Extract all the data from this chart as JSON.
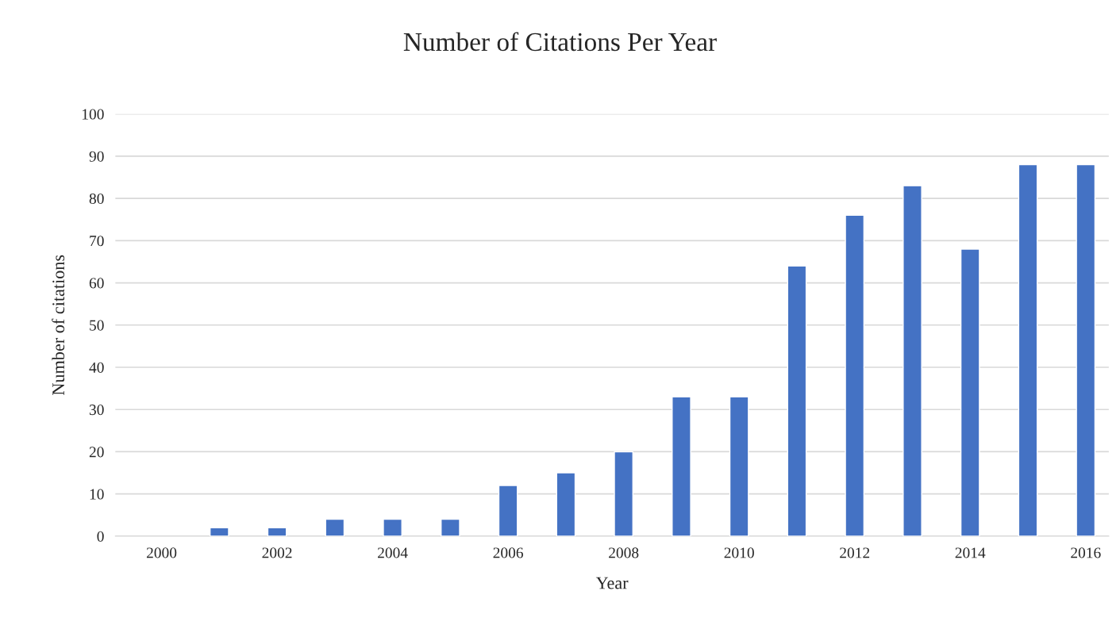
{
  "chart_data": {
    "type": "bar",
    "title": "Number of Citations Per Year",
    "xlabel": "Year",
    "ylabel": "Number of citations",
    "categories": [
      "2000",
      null,
      "2002",
      null,
      "2004",
      null,
      "2006",
      null,
      "2008",
      null,
      "2010",
      null,
      "2012",
      null,
      "2014",
      null,
      "2016"
    ],
    "values": [
      null,
      2,
      2,
      4,
      4,
      4,
      12,
      15,
      20,
      33,
      33,
      64,
      76,
      83,
      68,
      88,
      88
    ],
    "color": "#4472c4",
    "ylim": [
      0,
      100
    ],
    "yticks": [
      0,
      10,
      20,
      30,
      40,
      50,
      60,
      70,
      80,
      90,
      100
    ],
    "grid": "y",
    "legend": false
  }
}
